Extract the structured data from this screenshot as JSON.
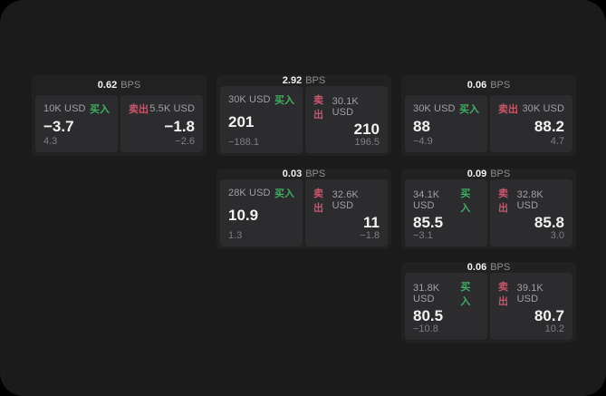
{
  "labels": {
    "bps_unit": "BPS",
    "buy": "买入",
    "sell": "卖出"
  },
  "theme": {
    "screen_bg": "#1b1b1c",
    "card_bg": "#212122",
    "cell_bg": "#2c2c2e",
    "buy_color": "#3fae62",
    "sell_color": "#c9556b"
  },
  "cards": [
    {
      "bps": "0.62",
      "buy": {
        "amount": "10K USD",
        "price": "−3.7",
        "delta": "4.3"
      },
      "sell": {
        "amount": "5.5K USD",
        "price": "−1.8",
        "delta": "−2.6"
      }
    },
    {
      "bps": "2.92",
      "buy": {
        "amount": "30K USD",
        "price": "201",
        "delta": "−188.1"
      },
      "sell": {
        "amount": "30.1K USD",
        "price": "210",
        "delta": "196.5"
      }
    },
    {
      "bps": "0.06",
      "buy": {
        "amount": "30K USD",
        "price": "88",
        "delta": "−4.9"
      },
      "sell": {
        "amount": "30K USD",
        "price": "88.2",
        "delta": "4.7"
      }
    },
    {
      "bps": "0.03",
      "buy": {
        "amount": "28K USD",
        "price": "10.9",
        "delta": "1.3"
      },
      "sell": {
        "amount": "32.6K USD",
        "price": "11",
        "delta": "−1.8"
      }
    },
    {
      "bps": "0.09",
      "buy": {
        "amount": "34.1K USD",
        "price": "85.5",
        "delta": "−3.1"
      },
      "sell": {
        "amount": "32.8K USD",
        "price": "85.8",
        "delta": "3.0"
      }
    },
    {
      "bps": "0.06",
      "buy": {
        "amount": "31.8K USD",
        "price": "80.5",
        "delta": "−10.8"
      },
      "sell": {
        "amount": "39.1K USD",
        "price": "80.7",
        "delta": "10.2"
      }
    }
  ]
}
